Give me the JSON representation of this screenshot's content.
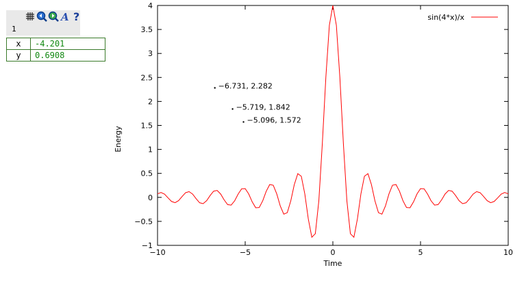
{
  "toolbar": {
    "plot_index": "1",
    "icons": [
      "grid-icon",
      "zoom-in-icon",
      "zoom-out-icon",
      "font-icon",
      "help-icon"
    ]
  },
  "cursor_readout": {
    "rows": [
      {
        "label": "x",
        "value": "-4.201"
      },
      {
        "label": "y",
        "value": "0.6908"
      }
    ]
  },
  "colors": {
    "curve": "#ff0000",
    "readout_value": "#118811",
    "toolbar_bg": "#e9e9e9"
  },
  "chart_data": {
    "type": "line",
    "title": "",
    "xlabel": "Time",
    "ylabel": "Energy",
    "xlim": [
      -10,
      10
    ],
    "ylim": [
      -1,
      4
    ],
    "xticks": [
      -10,
      -5,
      0,
      5,
      10
    ],
    "xtick_labels": [
      "−10",
      "−5",
      "0",
      "5",
      "10"
    ],
    "yticks": [
      -1,
      -0.5,
      0,
      0.5,
      1,
      1.5,
      2,
      2.5,
      3,
      3.5,
      4
    ],
    "ytick_labels": [
      "−1",
      "−0.5",
      "0",
      "0.5",
      "1",
      "1.5",
      "2",
      "2.5",
      "3",
      "3.5",
      "4"
    ],
    "legend_position": "top-right",
    "grid": false,
    "series": [
      {
        "name": "sin(4*x)/x",
        "function": "sin(4*x)/x",
        "x_start": -10,
        "x_end": 10,
        "samples": 101
      }
    ],
    "annotations": [
      {
        "x": -6.731,
        "y": 2.282,
        "label": "−6.731, 2.282"
      },
      {
        "x": -5.719,
        "y": 1.842,
        "label": "−5.719, 1.842"
      },
      {
        "x": -5.096,
        "y": 1.572,
        "label": "−5.096, 1.572"
      }
    ]
  }
}
